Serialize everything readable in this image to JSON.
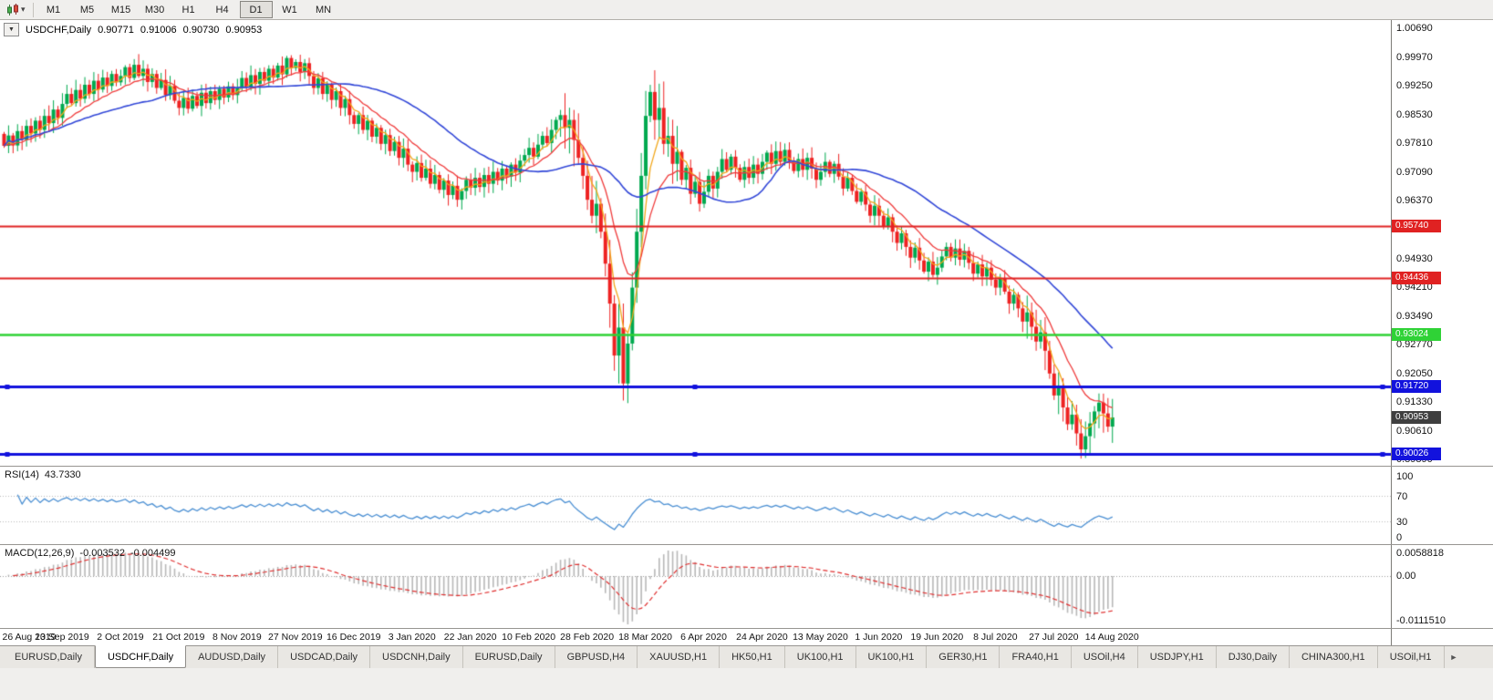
{
  "icons": {
    "chart_type_dropdown": "▾",
    "chart_menu": "▼",
    "tab_scroll_right": "►"
  },
  "colors": {
    "candle_up": "#00a94f",
    "candle_down": "#ee2222",
    "ma_fast_orange": "#f2a71b",
    "ma_mid_red": "#f03c3c",
    "ma_slow_blue": "#3348d8",
    "rsi_line": "#4a8fd3",
    "macd_histogram": "#b8b8b8",
    "macd_signal": "#e03030",
    "current_price_badge": "#3f3f3f"
  },
  "toolbar": {
    "timeframes": [
      "M1",
      "M5",
      "M15",
      "M30",
      "H1",
      "H4",
      "D1",
      "W1",
      "MN"
    ],
    "active_timeframe": "D1"
  },
  "chart": {
    "title": {
      "symbol": "USDCHF,Daily",
      "open": "0.90771",
      "high": "0.91006",
      "low": "0.90730",
      "close": "0.90953"
    },
    "y_axis_labels": [
      "1.00690",
      "0.99970",
      "0.99250",
      "0.98530",
      "0.97810",
      "0.97090",
      "0.96370",
      "0.95650",
      "0.94930",
      "0.94210",
      "0.93490",
      "0.92770",
      "0.92050",
      "0.91330",
      "0.90610",
      "0.89890"
    ],
    "price_lines": [
      {
        "value": 0.9574,
        "label": "0.95740",
        "color": "#e02222",
        "width": 2,
        "selected": false
      },
      {
        "value": 0.94436,
        "label": "0.94436",
        "color": "#e02222",
        "width": 2,
        "selected": false
      },
      {
        "value": 0.93024,
        "label": "0.93024",
        "color": "#2fd236",
        "width": 2.5,
        "selected": false
      },
      {
        "value": 0.9172,
        "label": "0.91720",
        "color": "#1212dd",
        "width": 3,
        "selected": true
      },
      {
        "value": 0.90026,
        "label": "0.90026",
        "color": "#1212dd",
        "width": 3,
        "selected": true
      }
    ],
    "current_price": {
      "value": 0.90953,
      "label": "0.90953"
    }
  },
  "rsi": {
    "label": "RSI(14)",
    "value": "43.7330",
    "axis_labels": [
      "100",
      "70",
      "30",
      "0"
    ],
    "levels": [
      70,
      30
    ]
  },
  "macd": {
    "label": "MACD(12,26,9)",
    "macd_value": "-0.003532",
    "signal_value": "-0.004499",
    "axis_top": "0.0058818",
    "axis_zero": "0.00",
    "axis_bottom": "-0.0111510"
  },
  "x_axis": {
    "step_candles": 13,
    "dates": [
      "26 Aug 2019",
      "13 Sep 2019",
      "2 Oct 2019",
      "21 Oct 2019",
      "8 Nov 2019",
      "27 Nov 2019",
      "16 Dec 2019",
      "3 Jan 2020",
      "22 Jan 2020",
      "10 Feb 2020",
      "28 Feb 2020",
      "18 Mar 2020",
      "6 Apr 2020",
      "24 Apr 2020",
      "13 May 2020",
      "1 Jun 2020",
      "19 Jun 2020",
      "8 Jul 2020",
      "27 Jul 2020",
      "14 Aug 2020"
    ]
  },
  "tabs": {
    "active_index": 1,
    "items": [
      "EURUSD,Daily",
      "USDCHF,Daily",
      "AUDUSD,Daily",
      "USDCAD,Daily",
      "USDCNH,Daily",
      "EURUSD,Daily",
      "GBPUSD,H4",
      "XAUUSD,H1",
      "HK50,H1",
      "UK100,H1",
      "UK100,H1",
      "GER30,H1",
      "FRA40,H1",
      "USOil,H4",
      "USDJPY,H1",
      "DJ30,Daily",
      "CHINA300,H1",
      "USOil,H1"
    ]
  },
  "chart_data": {
    "type": "candlestick",
    "symbol": "USDCHF",
    "timeframe": "Daily",
    "ylim": [
      0.8974,
      1.009
    ],
    "moving_averages": [
      {
        "kind": "ema",
        "period": 5,
        "color": "#f2a71b"
      },
      {
        "kind": "ema",
        "period": 13,
        "color": "#f03c3c"
      },
      {
        "kind": "sma",
        "period": 34,
        "color": "#3348d8"
      }
    ],
    "indicators": {
      "rsi": {
        "period": 14,
        "last": 43.733
      },
      "macd": {
        "fast": 12,
        "slow": 26,
        "signal": 9,
        "macd_last": -0.003532,
        "signal_last": -0.004499
      }
    },
    "closes": [
      0.9775,
      0.9801,
      0.9776,
      0.9812,
      0.979,
      0.9825,
      0.9806,
      0.9838,
      0.9815,
      0.985,
      0.9832,
      0.9866,
      0.9845,
      0.988,
      0.9905,
      0.9882,
      0.9915,
      0.9893,
      0.9928,
      0.9905,
      0.9938,
      0.9916,
      0.9946,
      0.9925,
      0.9955,
      0.9934,
      0.995,
      0.9972,
      0.9945,
      0.9978,
      0.995,
      0.9968,
      0.9935,
      0.9955,
      0.992,
      0.994,
      0.9902,
      0.9925,
      0.9888,
      0.987,
      0.9895,
      0.9868,
      0.99,
      0.9875,
      0.9908,
      0.9882,
      0.9912,
      0.989,
      0.9918,
      0.9896,
      0.9924,
      0.9902,
      0.992,
      0.9945,
      0.9922,
      0.9952,
      0.993,
      0.996,
      0.9938,
      0.9968,
      0.9946,
      0.9976,
      0.9954,
      0.9995,
      0.997,
      0.9985,
      0.996,
      0.9982,
      0.995,
      0.992,
      0.9944,
      0.9905,
      0.9928,
      0.989,
      0.9912,
      0.987,
      0.9892,
      0.9852,
      0.983,
      0.9852,
      0.9815,
      0.9838,
      0.9798,
      0.982,
      0.978,
      0.9802,
      0.9762,
      0.9785,
      0.9745,
      0.9768,
      0.9728,
      0.971,
      0.9732,
      0.9695,
      0.9718,
      0.968,
      0.9702,
      0.9665,
      0.9688,
      0.9652,
      0.9675,
      0.964,
      0.9662,
      0.969,
      0.967,
      0.9695,
      0.9672,
      0.9702,
      0.968,
      0.971,
      0.9688,
      0.9718,
      0.9698,
      0.9728,
      0.9708,
      0.9738,
      0.9752,
      0.977,
      0.9748,
      0.9778,
      0.98,
      0.9782,
      0.9815,
      0.984,
      0.9852,
      0.982,
      0.984,
      0.979,
      0.9745,
      0.97,
      0.964,
      0.96,
      0.963,
      0.956,
      0.948,
      0.938,
      0.925,
      0.932,
      0.918,
      0.928,
      0.942,
      0.956,
      0.97,
      0.985,
      0.991,
      0.984,
      0.987,
      0.978,
      0.98,
      0.973,
      0.976,
      0.969,
      0.972,
      0.9655,
      0.9685,
      0.963,
      0.966,
      0.97,
      0.9668,
      0.971,
      0.9742,
      0.9715,
      0.9748,
      0.972,
      0.969,
      0.9722,
      0.9695,
      0.9728,
      0.9705,
      0.9735,
      0.9758,
      0.973,
      0.9762,
      0.9735,
      0.9765,
      0.9738,
      0.9712,
      0.9742,
      0.9715,
      0.9745,
      0.9718,
      0.969,
      0.971,
      0.9735,
      0.9705,
      0.973,
      0.9698,
      0.9668,
      0.9695,
      0.9662,
      0.9635,
      0.966,
      0.9628,
      0.96,
      0.9625,
      0.96,
      0.9572,
      0.9596,
      0.956,
      0.9532,
      0.9556,
      0.9522,
      0.9495,
      0.952,
      0.9488,
      0.946,
      0.9485,
      0.9452,
      0.947,
      0.9498,
      0.9522,
      0.9495,
      0.9518,
      0.949,
      0.9512,
      0.9482,
      0.9455,
      0.9478,
      0.9448,
      0.947,
      0.944,
      0.942,
      0.9443,
      0.941,
      0.938,
      0.9402,
      0.9368,
      0.9335,
      0.9358,
      0.9322,
      0.9285,
      0.9308,
      0.9262,
      0.9205,
      0.915,
      0.9175,
      0.912,
      0.9078,
      0.9102,
      0.9055,
      0.9015,
      0.9048,
      0.908,
      0.911,
      0.9132,
      0.9105,
      0.9072,
      0.9095
    ]
  }
}
